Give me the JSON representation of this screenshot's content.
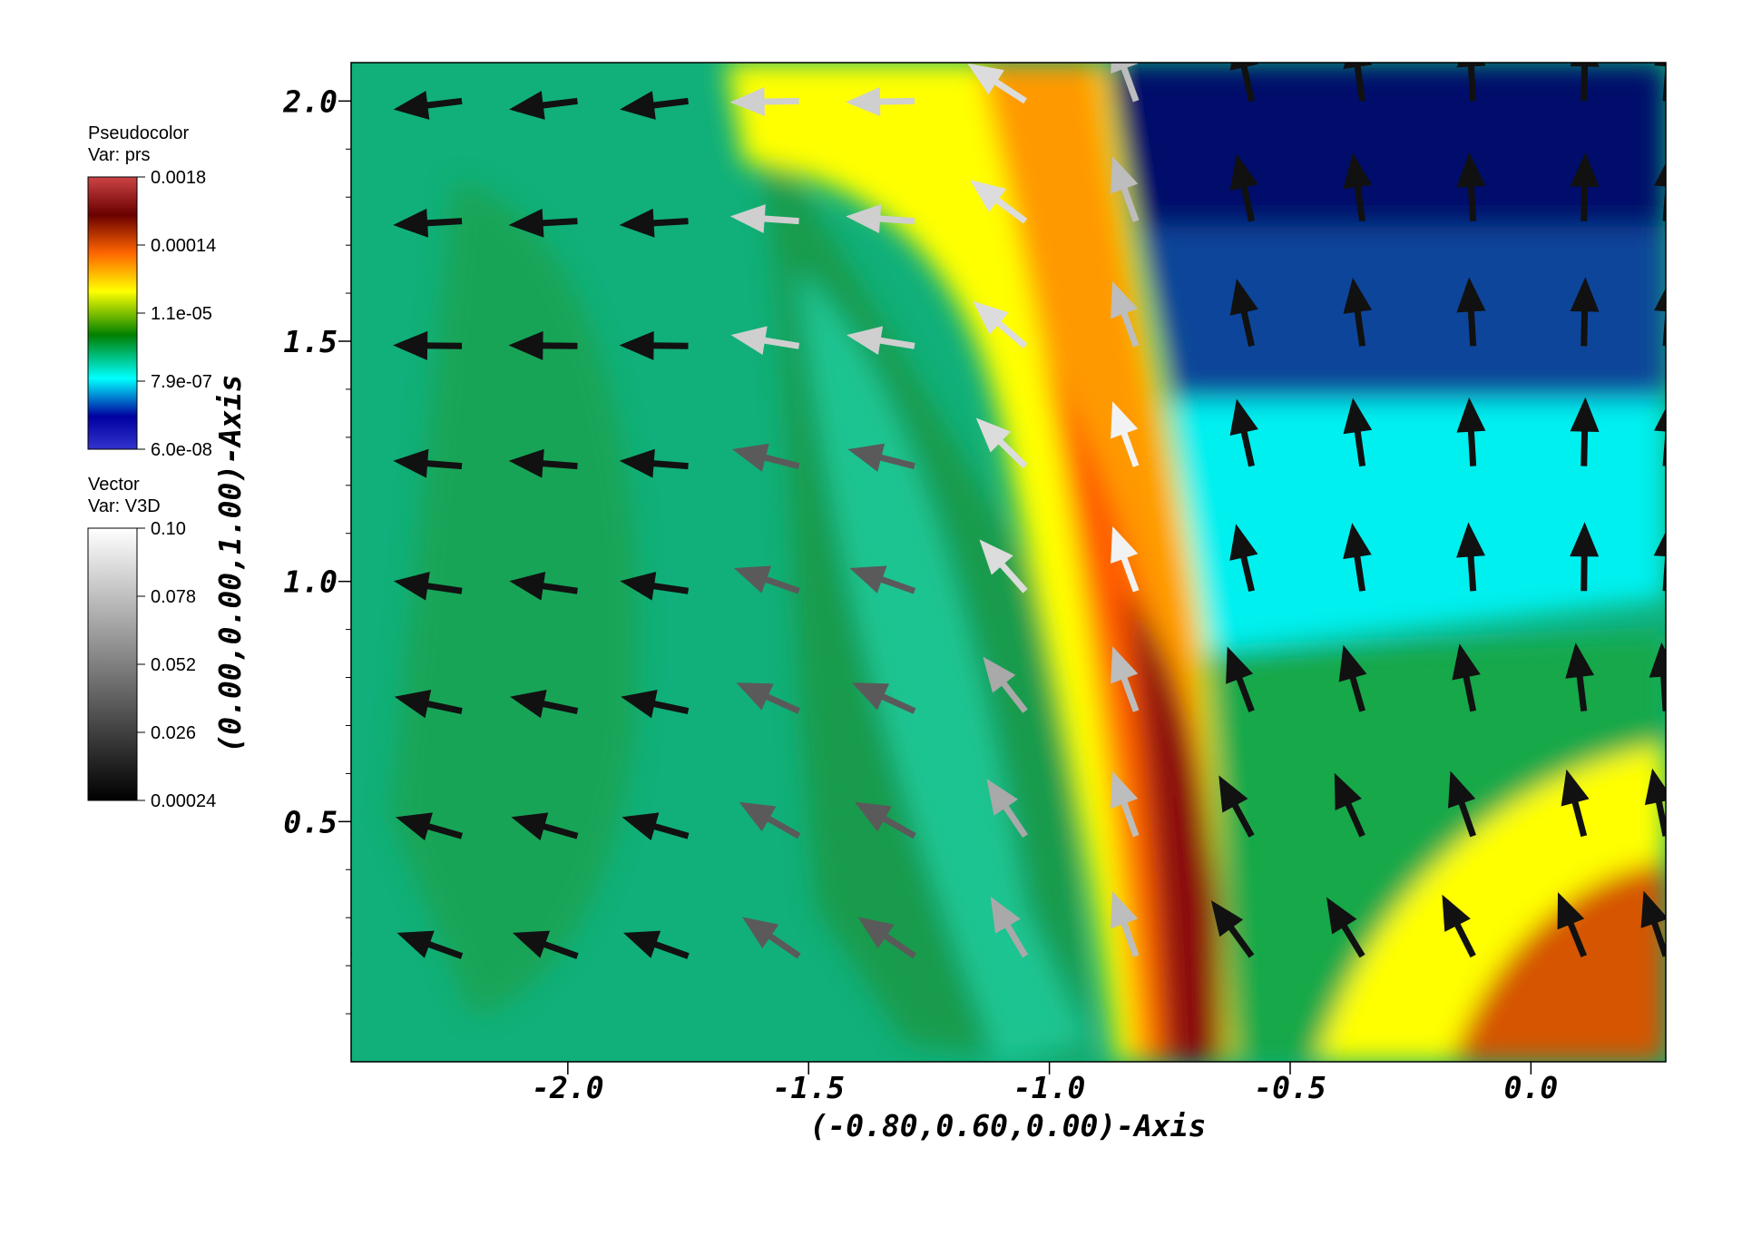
{
  "chart_data": {
    "type": "heatmap",
    "xlabel": "(-0.80,0.60,0.00)-Axis",
    "ylabel": "(0.00,0.00,1.00)-Axis",
    "xlim": [
      -2.45,
      0.28
    ],
    "ylim": [
      0.0,
      2.08
    ],
    "x_ticks": [
      "-2.0",
      "-1.5",
      "-1.0",
      "-0.5",
      "0.0"
    ],
    "x_tick_values": [
      -2.0,
      -1.5,
      -1.0,
      -0.5,
      0.0
    ],
    "y_ticks": [
      "0.5",
      "1.0",
      "1.5",
      "2.0"
    ],
    "y_tick_values": [
      0.5,
      1.0,
      1.5,
      2.0
    ],
    "pseudocolor": {
      "title": "Pseudocolor",
      "var": "Var: prs",
      "scale": "log",
      "ticks": [
        "0.0018",
        "0.00014",
        "1.1e-05",
        "7.9e-07",
        "6.0e-08"
      ],
      "colors": [
        "#cc4444",
        "#6b0000",
        "#ff6600",
        "#ffff00",
        "#008000",
        "#00ffff",
        "#0000a0",
        "#3333cc"
      ]
    },
    "vector": {
      "title": "Vector",
      "var": "Var: V3D",
      "ticks": [
        "0.10",
        "0.078",
        "0.052",
        "0.026",
        "0.00024"
      ],
      "colors": [
        "#ffffff",
        "#000000"
      ]
    },
    "regions": {
      "ambient_green": "#11b07a",
      "shocked_shell": [
        "#ffff00",
        "#ff9900",
        "#ff5a00",
        "#8b0a0a"
      ],
      "upper_blue": "#000d6b",
      "cyan_band": "#00f0f0",
      "lower_right_hot": "#d65500"
    },
    "vector_grid": {
      "x": [
        -2.45,
        -2.22,
        -1.98,
        -1.75,
        -1.52,
        -1.28,
        -1.05,
        -0.82,
        -0.58,
        -0.35,
        -0.12,
        0.11,
        0.28
      ],
      "y": [
        0.22,
        0.47,
        0.73,
        0.98,
        1.24,
        1.49,
        1.75,
        2.0
      ]
    }
  }
}
